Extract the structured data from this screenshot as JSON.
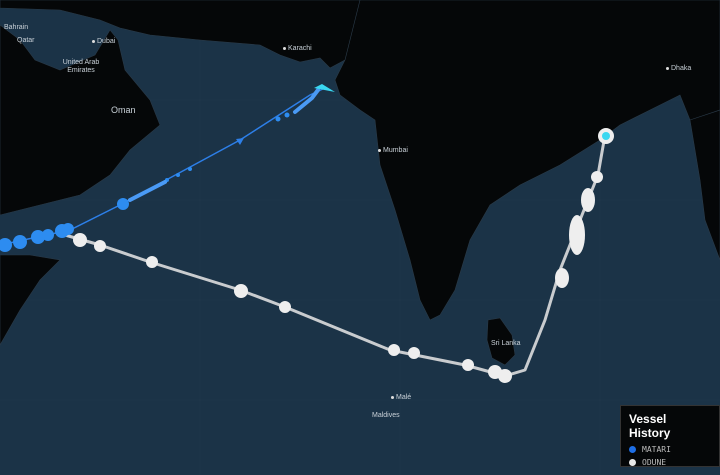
{
  "map": {
    "labels": {
      "bahrain": "Bahrain",
      "qatar": "Qatar",
      "dubai": "Dubai",
      "uae": "United Arab Emirates",
      "oman": "Oman",
      "karachi": "Karachi",
      "mumbai": "Mumbai",
      "dhaka": "Dhaka",
      "sri_lanka": "Sri Lanka",
      "male": "Malé",
      "maldives": "Maldives"
    },
    "colors": {
      "sea": "#1b3347",
      "land": "#050708",
      "matari": "#2d8cf0",
      "odune": "#e8e8e8"
    }
  },
  "legend": {
    "title": "Vessel History",
    "items": [
      {
        "label": "MATARI",
        "color": "#1e6fe6"
      },
      {
        "label": "ODUNE",
        "color": "#e8e8e8"
      }
    ]
  }
}
